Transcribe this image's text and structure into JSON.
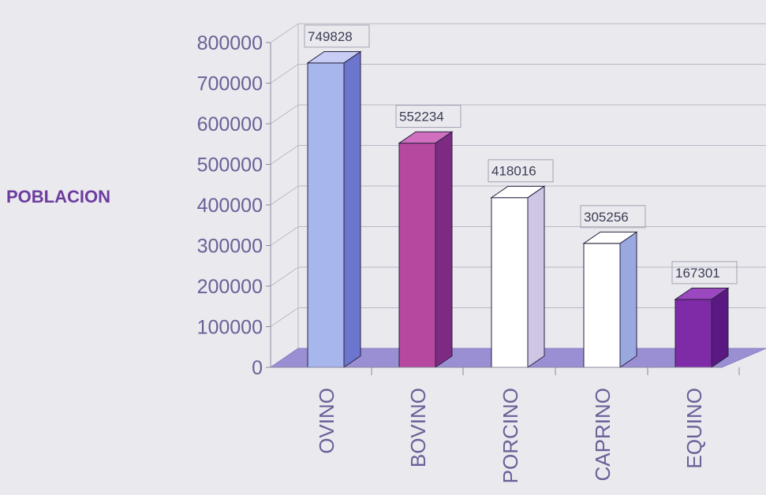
{
  "chart_data": {
    "type": "bar",
    "ylabel": "POBLACION",
    "categories": [
      "OVINO",
      "BOVINO",
      "PORCINO",
      "CAPRINO",
      "EQUINO"
    ],
    "values": [
      749828,
      552234,
      418016,
      305256,
      167301
    ],
    "data_labels": [
      "749828",
      "552234",
      "418016",
      "305256",
      "167301"
    ],
    "ylim": [
      0,
      800000
    ],
    "yticks": [
      0,
      100000,
      200000,
      300000,
      400000,
      500000,
      600000,
      700000,
      800000
    ],
    "ytick_labels": [
      "0",
      "100000",
      "200000",
      "300000",
      "400000",
      "500000",
      "600000",
      "700000",
      "800000"
    ],
    "grid": true,
    "style": "3d-columns",
    "colors": {
      "axis_text": "#6b5f97",
      "ylabel": "#6d3b9e",
      "floor": "#9b8fd3",
      "grid": "#b9b9c6",
      "bars": [
        "#a8b6ee",
        "#b6489f",
        "#ffffff",
        "#ffffff",
        "#7f2aa6"
      ],
      "bar_sides": [
        "#6c76cf",
        "#7d2a83",
        "#cfc6e6",
        "#9aa8e0",
        "#5a1883"
      ],
      "bar_tops": [
        "#c7cdf5",
        "#cf6fbd",
        "#ffffff",
        "#ffffff",
        "#9b48c0"
      ]
    }
  }
}
